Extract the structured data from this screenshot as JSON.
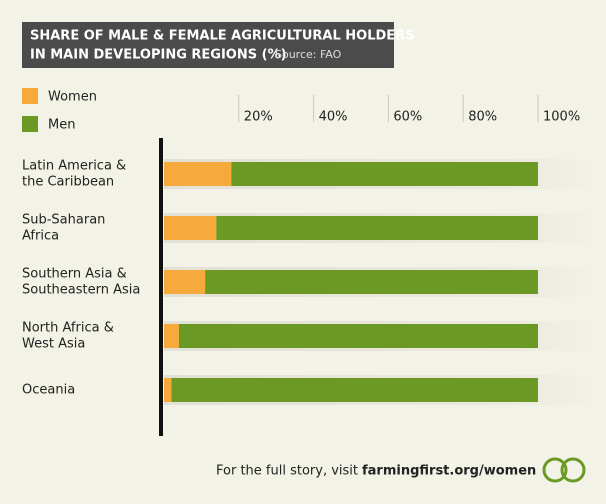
{
  "chart_data": {
    "type": "stacked-bar-horizontal",
    "title_lines": [
      "SHARE OF MALE & FEMALE AGRICULTURAL HOLDERS",
      "IN MAIN DEVELOPING REGIONS (%)"
    ],
    "source": "Source: FAO",
    "categories": [
      [
        "Latin America &",
        "the Caribbean"
      ],
      [
        "Sub-Saharan",
        "Africa"
      ],
      [
        "Southern Asia &",
        "Southeastern Asia"
      ],
      [
        "North Africa &",
        "West Asia"
      ],
      [
        "Oceania"
      ]
    ],
    "series": [
      {
        "name": "Women",
        "color": "#f6aa3c",
        "values": [
          18,
          14,
          11,
          4,
          2
        ]
      },
      {
        "name": "Men",
        "color": "#6b9a24",
        "values": [
          82,
          86,
          89,
          96,
          98
        ]
      }
    ],
    "xlim": [
      0,
      100
    ],
    "xticks": [
      {
        "value": 20,
        "label": "20%"
      },
      {
        "value": 40,
        "label": "40%"
      },
      {
        "value": 60,
        "label": "60%"
      },
      {
        "value": 80,
        "label": "80%"
      },
      {
        "value": 100,
        "label": "100%"
      }
    ],
    "footer": {
      "text": "For the full story, visit",
      "link": "farmingfirst.org/women"
    }
  }
}
